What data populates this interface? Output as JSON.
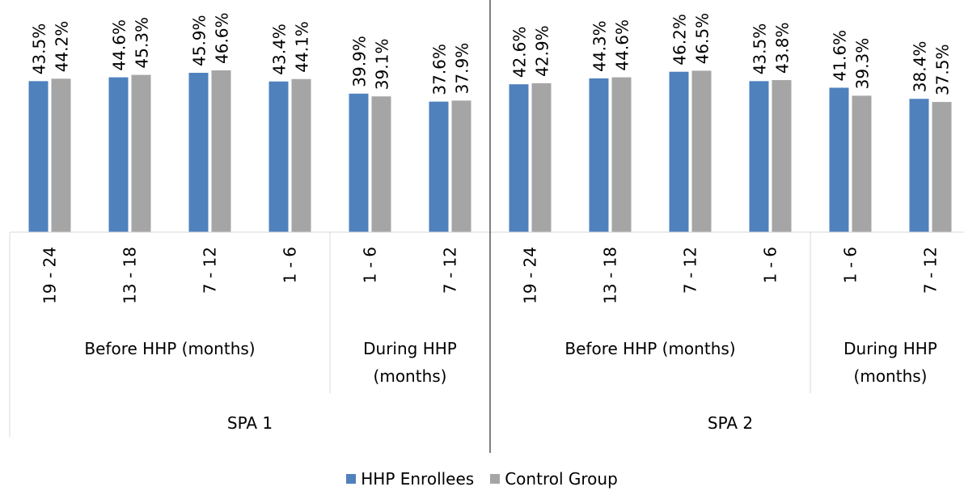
{
  "chart_data": {
    "type": "bar",
    "ylim": [
      0,
      60
    ],
    "grid": false,
    "legend_position": "bottom",
    "colors": {
      "hhp": "#4F81BD",
      "control": "#A5A5A5"
    },
    "spa_groups": [
      {
        "label": "SPA 1",
        "periods": [
          {
            "label": "Before HHP (months)",
            "categories": [
              "19 - 24",
              "13 - 18",
              "7 - 12",
              "1 - 6"
            ]
          },
          {
            "label": "During HHP (months)",
            "categories": [
              "1 - 6",
              "7 - 12"
            ]
          }
        ]
      },
      {
        "label": "SPA 2",
        "periods": [
          {
            "label": "Before HHP (months)",
            "categories": [
              "19 - 24",
              "13 - 18",
              "7 - 12",
              "1 - 6"
            ]
          },
          {
            "label": "During HHP (months)",
            "categories": [
              "1 - 6",
              "7 - 12"
            ]
          }
        ]
      }
    ],
    "series": [
      {
        "name": "HHP Enrollees",
        "values": [
          43.5,
          44.6,
          45.9,
          43.4,
          39.9,
          37.6,
          42.6,
          44.3,
          46.2,
          43.5,
          41.6,
          38.4
        ],
        "labels": [
          "43.5%",
          "44.6%",
          "45.9%",
          "43.4%",
          "39.9%",
          "37.6%",
          "42.6%",
          "44.3%",
          "46.2%",
          "43.5%",
          "41.6%",
          "38.4%"
        ]
      },
      {
        "name": "Control Group",
        "values": [
          44.2,
          45.3,
          46.6,
          44.1,
          39.1,
          37.9,
          42.9,
          44.6,
          46.5,
          43.8,
          39.3,
          37.5
        ],
        "labels": [
          "44.2%",
          "45.3%",
          "46.6%",
          "44.1%",
          "39.1%",
          "37.9%",
          "42.9%",
          "44.6%",
          "46.5%",
          "43.8%",
          "39.3%",
          "37.5%"
        ]
      }
    ]
  },
  "legend": {
    "hhp_label": "HHP Enrollees",
    "control_label": "Control Group"
  }
}
